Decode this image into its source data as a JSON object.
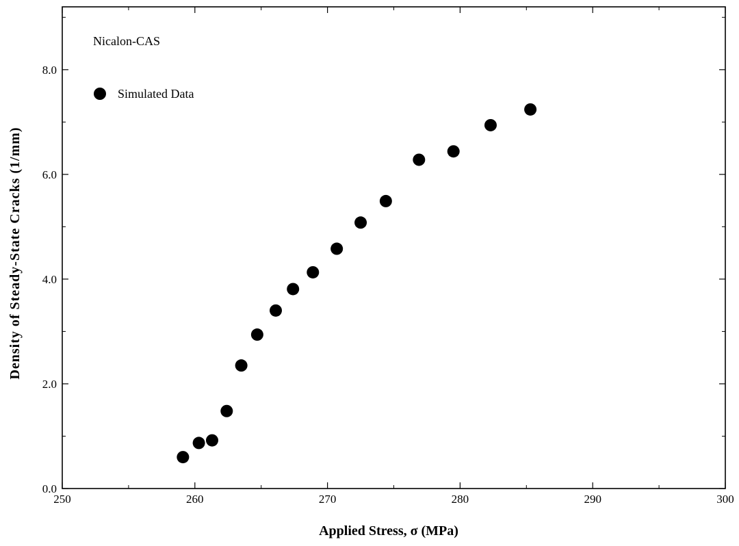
{
  "chart_data": {
    "type": "scatter",
    "title": "",
    "annotation": "Nicalon-CAS",
    "xlabel": "Applied Stress, σ (MPa)",
    "ylabel": "Density of Steady-State Cracks (1/mm)",
    "xlim": [
      250,
      300
    ],
    "ylim": [
      0,
      9.2
    ],
    "xticks": [
      250,
      260,
      270,
      280,
      290,
      300
    ],
    "xtick_labels": [
      "250",
      "260",
      "270",
      "280",
      "290",
      "300"
    ],
    "yticks": [
      0,
      2,
      4,
      6,
      8
    ],
    "ytick_labels": [
      "0.0",
      "2.0",
      "4.0",
      "6.0",
      "8.0"
    ],
    "grid": false,
    "legend_position": "top-left",
    "marker_color": "#000000",
    "series": [
      {
        "name": "Simulated Data",
        "x": [
          259.1,
          260.3,
          261.3,
          262.4,
          263.5,
          264.7,
          266.1,
          267.4,
          268.9,
          270.7,
          272.5,
          274.4,
          276.9,
          279.5,
          282.3,
          285.3
        ],
        "y": [
          0.6,
          0.87,
          0.92,
          1.48,
          2.35,
          2.94,
          3.4,
          3.81,
          4.13,
          4.58,
          5.08,
          5.49,
          6.28,
          6.44,
          6.94,
          7.24
        ]
      }
    ]
  }
}
